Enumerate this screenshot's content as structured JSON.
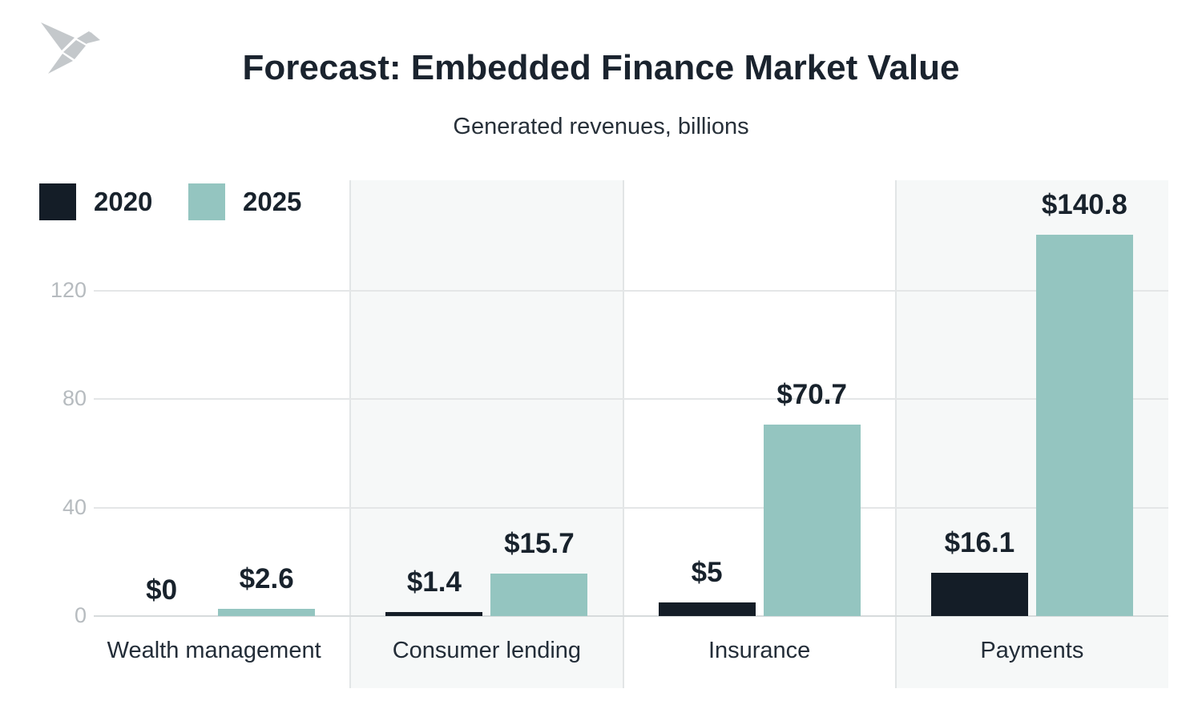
{
  "logo": {
    "name": "origami-bird-logo",
    "color": "#c4c8cb"
  },
  "header": {
    "title": "Forecast: Embedded Finance Market Value",
    "subtitle": "Generated revenues, billions"
  },
  "legend": {
    "position": "top-left",
    "items": [
      {
        "label": "2020",
        "color": "#141d27"
      },
      {
        "label": "2025",
        "color": "#94c5c0"
      }
    ]
  },
  "chart_data": {
    "type": "bar",
    "title": "Forecast: Embedded Finance Market Value",
    "subtitle": "Generated revenues, billions",
    "categories": [
      "Wealth management",
      "Consumer lending",
      "Insurance",
      "Payments"
    ],
    "series": [
      {
        "name": "2020",
        "color": "#141d27",
        "values": [
          0,
          1.4,
          5,
          16.1
        ],
        "labels": [
          "$0",
          "$1.4",
          "$5",
          "$16.1"
        ]
      },
      {
        "name": "2025",
        "color": "#94c5c0",
        "values": [
          2.6,
          15.7,
          70.7,
          140.8
        ],
        "labels": [
          "$2.6",
          "$15.7",
          "$70.7",
          "$140.8"
        ]
      }
    ],
    "y_ticks": [
      0,
      40,
      80,
      120
    ],
    "y_tick_labels": [
      "0",
      "40",
      "80",
      "120"
    ],
    "ylim": [
      0,
      160
    ],
    "grid": "horizontal",
    "legend_position": "top-left",
    "value_labels_shown": true
  },
  "style": {
    "background": "#ffffff",
    "band_fill": "#f6f8f8",
    "gridline_color": "#e4e6e7",
    "baseline_color": "#d7dbdc",
    "tick_label_color": "#b6bbbf",
    "title_color": "#1a232e",
    "value_label_color": "#18222c"
  }
}
